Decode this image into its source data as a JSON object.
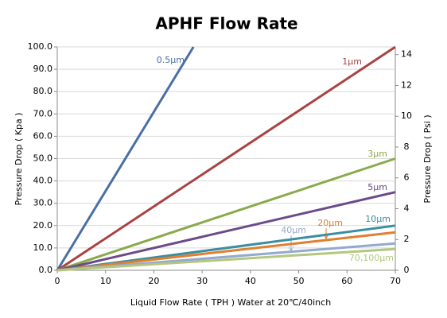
{
  "chart_data": {
    "type": "line",
    "title": "APHF Flow Rate",
    "x_label": "Liquid Flow Rate ( TPH ) Water at 20℃/40inch",
    "y_label": "Pressure Drop ( Kpa )",
    "y2_label": "Pressure Drop ( Psi )",
    "xlim": [
      0,
      70
    ],
    "xticks": [
      0,
      10,
      20,
      30,
      40,
      50,
      60,
      70
    ],
    "ylim": [
      0,
      100
    ],
    "yticks": [
      {
        "value": 0,
        "label": "0.0"
      },
      {
        "value": 10,
        "label": "10.0"
      },
      {
        "value": 20,
        "label": "20.0"
      },
      {
        "value": 30,
        "label": "30.0"
      },
      {
        "value": 40,
        "label": "40.0"
      },
      {
        "value": 50,
        "label": "50.0"
      },
      {
        "value": 60,
        "label": "60.0"
      },
      {
        "value": 70,
        "label": "70.0"
      },
      {
        "value": 80,
        "label": "80.0"
      },
      {
        "value": 90,
        "label": "90.0"
      },
      {
        "value": 100,
        "label": "100.0"
      }
    ],
    "y2lim": [
      0,
      14.5
    ],
    "y2ticks": [
      0,
      2,
      4,
      6,
      8,
      10,
      12,
      14
    ],
    "grid": true,
    "series": [
      {
        "name": "0.5μm",
        "color": "#4a6fa5",
        "x": [
          0,
          28.2
        ],
        "values": [
          0,
          100
        ]
      },
      {
        "name": "1μm",
        "color": "#a94343",
        "x": [
          0,
          70
        ],
        "values": [
          0,
          100
        ]
      },
      {
        "name": "3μm",
        "color": "#8aaa4a",
        "x": [
          0,
          70
        ],
        "values": [
          0,
          50
        ]
      },
      {
        "name": "5μm",
        "color": "#6b4a8a",
        "x": [
          0,
          70
        ],
        "values": [
          0,
          35
        ]
      },
      {
        "name": "10μm",
        "color": "#3a8ea0",
        "x": [
          0,
          70
        ],
        "values": [
          0,
          20
        ]
      },
      {
        "name": "20μm",
        "color": "#e07f2e",
        "x": [
          0,
          70
        ],
        "values": [
          0,
          17
        ]
      },
      {
        "name": "40μm",
        "color": "#93a9cf",
        "x": [
          0,
          70
        ],
        "values": [
          0,
          12
        ]
      },
      {
        "name": "70,100μm",
        "color": "#b3c77e",
        "x": [
          0,
          70
        ],
        "values": [
          0,
          9.5
        ]
      }
    ]
  }
}
